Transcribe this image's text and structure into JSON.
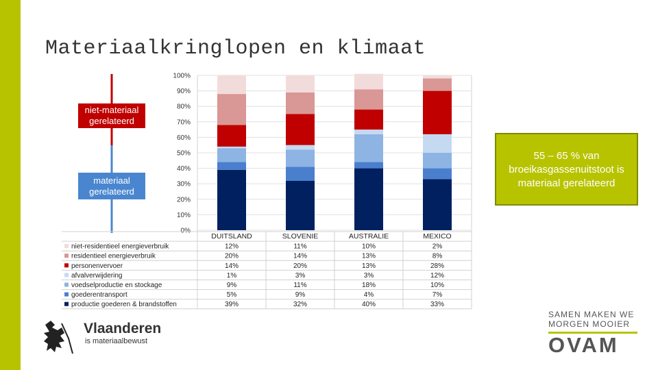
{
  "slide": {
    "title": "Materiaalkringlopen en klimaat"
  },
  "labels": {
    "top_category": "niet-materiaal gerelateerd",
    "bottom_category": "materiaal gerelateerd"
  },
  "note": "55 – 65 % van broeikasgassenuitstoot is materiaal gerelateerd",
  "colors": {
    "accent": "#b8c300",
    "non_material": "#c00000",
    "material": "#4a86cf"
  },
  "chart_data": {
    "type": "bar",
    "stacked": true,
    "categories": [
      "DUITSLAND",
      "SLOVENIE",
      "AUSTRALIE",
      "MEXICO"
    ],
    "ylim": [
      0,
      100
    ],
    "yticks": [
      "0%",
      "10%",
      "20%",
      "30%",
      "40%",
      "50%",
      "60%",
      "70%",
      "80%",
      "90%",
      "100%"
    ],
    "grid": true,
    "legend_position": "table below chart",
    "series": [
      {
        "name": "productie goederen & brandstoffen",
        "color": "#002060",
        "values": [
          39,
          32,
          40,
          33
        ],
        "labels": [
          "39%",
          "32%",
          "40%",
          "33%"
        ]
      },
      {
        "name": "goederentransport",
        "color": "#4a7fce",
        "values": [
          5,
          9,
          4,
          7
        ],
        "labels": [
          "5%",
          "9%",
          "4%",
          "7%"
        ]
      },
      {
        "name": "voedselproductie en stockage",
        "color": "#8db4e3",
        "values": [
          9,
          11,
          18,
          10
        ],
        "labels": [
          "9%",
          "11%",
          "18%",
          "10%"
        ]
      },
      {
        "name": "afvalverwijdering",
        "color": "#c5d9f1",
        "values": [
          1,
          3,
          3,
          12
        ],
        "labels": [
          "1%",
          "3%",
          "3%",
          "12%"
        ]
      },
      {
        "name": "personenvervoer",
        "color": "#c00000",
        "values": [
          14,
          20,
          13,
          28
        ],
        "labels": [
          "14%",
          "20%",
          "13%",
          "28%"
        ]
      },
      {
        "name": "residentieel energieverbruik",
        "color": "#d99795",
        "values": [
          20,
          14,
          13,
          8
        ],
        "labels": [
          "20%",
          "14%",
          "13%",
          "8%"
        ]
      },
      {
        "name": "niet-residentieel energieverbruik",
        "color": "#f2dcdb",
        "values": [
          12,
          11,
          10,
          2
        ],
        "labels": [
          "12%",
          "11%",
          "10%",
          "2%"
        ]
      }
    ]
  },
  "logos": {
    "vlaanderen_name": "Vlaanderen",
    "vlaanderen_tagline": "is materiaalbewust",
    "ovam_slogan": "SAMEN MAKEN WE MORGEN MOOIER",
    "ovam_name": "OVAM"
  }
}
